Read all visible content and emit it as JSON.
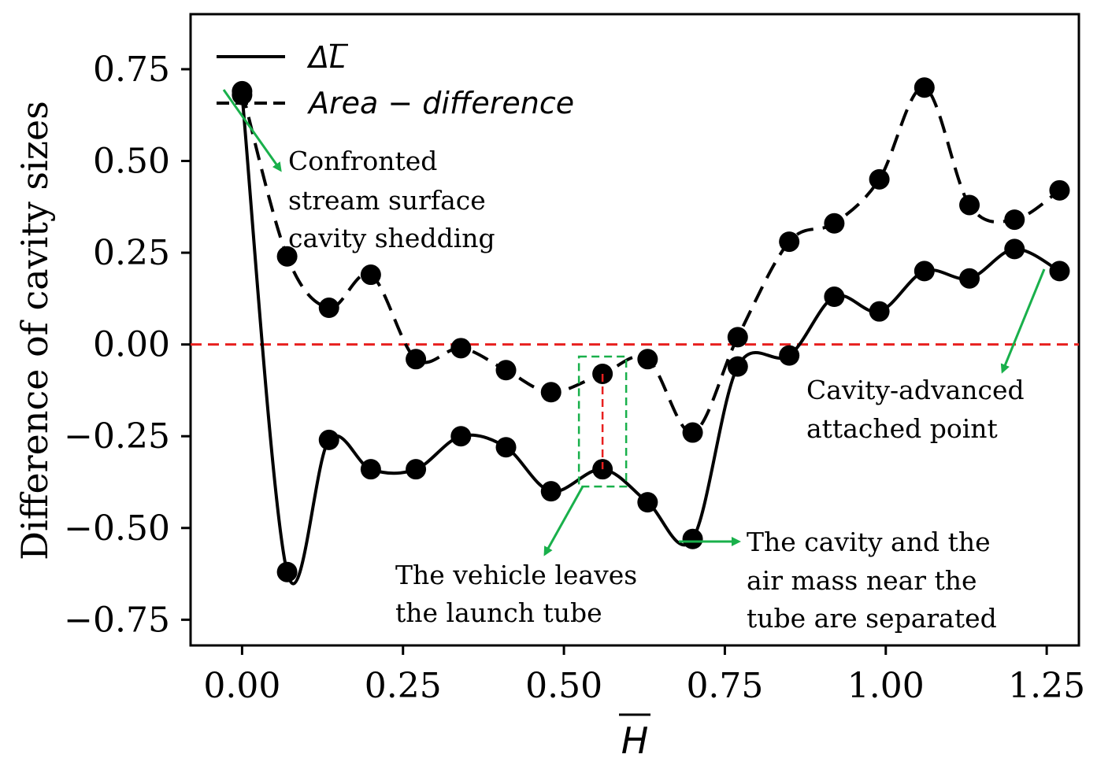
{
  "chart_data": {
    "type": "line",
    "title": "",
    "xlabel": "H",
    "ylabel": "Difference of cavity sizes",
    "xlim": [
      -0.08,
      1.3
    ],
    "ylim": [
      -0.82,
      0.9
    ],
    "grid": false,
    "legend_position": "top-left",
    "x_ticks": [
      0.0,
      0.25,
      0.5,
      0.75,
      1.0,
      1.25
    ],
    "x_tick_labels": [
      "0.00",
      "0.25",
      "0.50",
      "0.75",
      "1.00",
      "1.25"
    ],
    "y_ticks": [
      0.75,
      0.5,
      0.25,
      0.0,
      -0.25,
      -0.5,
      -0.75
    ],
    "y_tick_labels": [
      "0.75",
      "0.50",
      "0.25",
      "0.00",
      "−0.25",
      "−0.50",
      "−0.75"
    ],
    "zero_line_color": "#e8201f",
    "series": [
      {
        "name": "ΔL",
        "style": "solid",
        "color": "#000000",
        "x": [
          0.0,
          0.07,
          0.135,
          0.2,
          0.27,
          0.34,
          0.41,
          0.48,
          0.56,
          0.63,
          0.7,
          0.77,
          0.85,
          0.92,
          0.99,
          1.06,
          1.13,
          1.2,
          1.27
        ],
        "y": [
          0.68,
          -0.62,
          -0.26,
          -0.34,
          -0.34,
          -0.25,
          -0.28,
          -0.4,
          -0.34,
          -0.43,
          -0.53,
          -0.06,
          -0.03,
          0.13,
          0.09,
          0.2,
          0.18,
          0.26,
          0.2
        ]
      },
      {
        "name": "Area − difference",
        "style": "dashed",
        "color": "#000000",
        "x": [
          0.0,
          0.07,
          0.135,
          0.2,
          0.27,
          0.34,
          0.41,
          0.48,
          0.56,
          0.63,
          0.7,
          0.77,
          0.85,
          0.92,
          0.99,
          1.06,
          1.13,
          1.2,
          1.27
        ],
        "y": [
          0.69,
          0.24,
          0.1,
          0.19,
          -0.04,
          -0.01,
          -0.07,
          -0.13,
          -0.08,
          -0.04,
          -0.24,
          0.02,
          0.28,
          0.33,
          0.45,
          0.7,
          0.38,
          0.34,
          0.42
        ]
      }
    ],
    "legend": {
      "solid_label": "ΔL",
      "dashed_label": "Area − difference"
    },
    "annotations": [
      {
        "id": "confronted",
        "lines": [
          "Confronted",
          "stream surface",
          "cavity shedding"
        ]
      },
      {
        "id": "cavity-advanced",
        "lines": [
          "Cavity-advanced",
          "attached point"
        ]
      },
      {
        "id": "vehicle-leaves",
        "lines": [
          "The vehicle leaves",
          "the launch tube"
        ]
      },
      {
        "id": "separated",
        "lines": [
          "The cavity and the",
          "air mass near the",
          "tube are separated"
        ]
      }
    ],
    "annotation_color": "#19b04b"
  }
}
